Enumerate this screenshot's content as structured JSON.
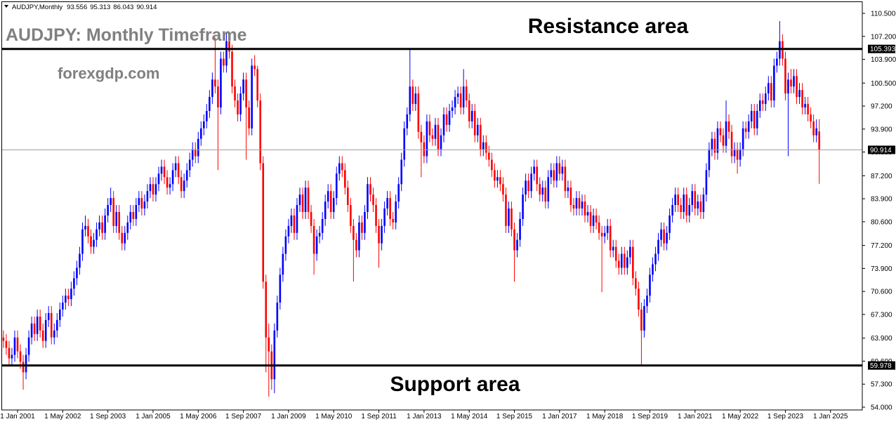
{
  "chart_data": {
    "type": "candlestick",
    "symbol": "AUDJPY,Monthly",
    "title": "AUDJPY: Monthly Timeframe",
    "watermark": "forexgdp.com",
    "resistance": {
      "label": "Resistance area",
      "value": 105.393
    },
    "support": {
      "label": "Support area",
      "value": 59.978
    },
    "up_color": "#0000ff",
    "down_color": "#ff0000",
    "ylim": [
      54.0,
      110.5
    ],
    "yticks": [
      {
        "value": 110.5,
        "label": "110.500"
      },
      {
        "value": 107.2,
        "label": "107.200"
      },
      {
        "value": 103.9,
        "label": "103.900"
      },
      {
        "value": 100.5,
        "label": "100.500"
      },
      {
        "value": 97.2,
        "label": "97.200"
      },
      {
        "value": 93.9,
        "label": "93.900"
      },
      {
        "value": 90.6,
        "label": "90.600"
      },
      {
        "value": 87.2,
        "label": "87.200"
      },
      {
        "value": 83.9,
        "label": "83.900"
      },
      {
        "value": 80.6,
        "label": "80.600"
      },
      {
        "value": 77.2,
        "label": "77.200"
      },
      {
        "value": 73.9,
        "label": "73.900"
      },
      {
        "value": 70.6,
        "label": "70.600"
      },
      {
        "value": 67.3,
        "label": "67.300"
      },
      {
        "value": 63.9,
        "label": "63.900"
      },
      {
        "value": 60.6,
        "label": "60.600"
      },
      {
        "value": 57.3,
        "label": "57.300"
      },
      {
        "value": 54.0,
        "label": "54.000"
      }
    ],
    "categories": [
      null,
      null,
      null,
      null,
      null,
      "1 Jan 2001",
      null,
      null,
      null,
      null,
      null,
      null,
      null,
      null,
      null,
      null,
      null,
      null,
      null,
      null,
      null,
      "1 May 2002",
      null,
      null,
      null,
      null,
      null,
      null,
      null,
      null,
      null,
      null,
      null,
      null,
      null,
      null,
      null,
      "1 Sep 2003",
      null,
      null,
      null,
      null,
      null,
      null,
      null,
      null,
      null,
      null,
      null,
      null,
      null,
      null,
      null,
      "1 Jan 2005",
      null,
      null,
      null,
      null,
      null,
      null,
      null,
      null,
      null,
      null,
      null,
      null,
      null,
      null,
      null,
      "1 May 2006",
      null,
      null,
      null,
      null,
      null,
      null,
      null,
      null,
      null,
      null,
      null,
      null,
      null,
      null,
      null,
      "1 Sep 2007",
      null,
      null,
      null,
      null,
      null,
      null,
      null,
      null,
      null,
      null,
      null,
      null,
      null,
      null,
      null,
      "1 Jan 2009",
      null,
      null,
      null,
      null,
      null,
      null,
      null,
      null,
      null,
      null,
      null,
      null,
      null,
      null,
      null,
      "1 May 2010",
      null,
      null,
      null,
      null,
      null,
      null,
      null,
      null,
      null,
      null,
      null,
      null,
      null,
      null,
      null,
      "1 Sep 2011",
      null,
      null,
      null,
      null,
      null,
      null,
      null,
      null,
      null,
      null,
      null,
      null,
      null,
      null,
      null,
      "1 Jan 2013",
      null,
      null,
      null,
      null,
      null,
      null,
      null,
      null,
      null,
      null,
      null,
      null,
      null,
      null,
      null,
      "1 May 2014",
      null,
      null,
      null,
      null,
      null,
      null,
      null,
      null,
      null,
      null,
      null,
      null,
      null,
      null,
      null,
      "1 Sep 2015",
      null,
      null,
      null,
      null,
      null,
      null,
      null,
      null,
      null,
      null,
      null,
      null,
      null,
      null,
      null,
      "1 Jan 2017",
      null,
      null,
      null,
      null,
      null,
      null,
      null,
      null,
      null,
      null,
      null,
      null,
      null,
      null,
      null,
      "1 May 2018",
      null,
      null,
      null,
      null,
      null,
      null,
      null,
      null,
      null,
      null,
      null,
      null,
      null,
      null,
      null,
      "1 Sep 2019",
      null,
      null,
      null,
      null,
      null,
      null,
      null,
      null,
      null,
      null,
      null,
      null,
      null,
      null,
      null,
      "1 Jan 2021",
      null,
      null,
      null,
      null,
      null,
      null,
      null,
      null,
      null,
      null,
      null,
      null,
      null,
      null,
      null,
      "1 May 2022",
      null,
      null,
      null,
      null,
      null,
      null,
      null,
      null,
      null,
      null,
      null,
      null,
      null,
      null,
      null,
      "1 Sep 2023",
      null,
      null,
      null,
      null,
      null,
      null,
      null,
      null,
      null,
      null,
      null,
      null,
      null,
      null,
      null,
      "1 Jan 2025"
    ],
    "open": [
      64,
      63.5,
      62.5,
      61,
      61.5,
      64,
      62,
      60.5,
      59,
      61.5,
      64,
      66,
      64.5,
      67,
      65,
      63.5,
      66.5,
      67.5,
      64,
      65,
      66.5,
      68,
      69,
      70,
      69.5,
      71,
      72.5,
      74,
      76,
      79.5,
      80,
      78.5,
      77,
      78,
      79.5,
      80.5,
      79,
      81.5,
      83,
      84,
      80,
      82,
      79,
      77.5,
      79,
      80.5,
      82,
      81,
      83,
      84,
      82.5,
      83.5,
      85,
      86,
      84.5,
      86,
      87.5,
      88.5,
      87,
      85.5,
      86,
      88,
      89,
      87,
      85,
      86.5,
      88,
      89.5,
      91,
      90,
      92.5,
      94,
      95,
      96.5,
      98.5,
      101,
      100,
      97,
      104,
      103,
      106.5,
      105,
      100,
      98,
      96,
      99,
      101,
      97,
      94,
      103,
      102.5,
      98,
      89,
      72,
      64,
      62,
      58,
      65,
      69,
      73,
      76,
      78.5,
      80,
      81.5,
      79,
      83,
      84.5,
      82,
      85.5,
      82,
      80,
      76,
      78.5,
      79,
      81,
      83.5,
      85,
      82,
      84,
      87.5,
      89,
      88,
      85.5,
      83,
      80,
      78,
      76.5,
      80.5,
      79,
      82,
      86,
      84.5,
      83,
      80,
      77.5,
      80,
      82.5,
      84,
      81,
      80.5,
      83.5,
      86,
      89.5,
      94,
      96,
      100,
      97.5,
      99,
      93.5,
      92,
      90,
      95,
      93,
      92.5,
      94.5,
      91,
      93,
      96,
      94.5,
      96.5,
      97,
      98.5,
      99,
      97,
      100,
      98,
      95,
      96.5,
      93,
      94.5,
      91,
      92,
      90.5,
      89.5,
      88,
      86.5,
      87,
      86,
      84.5,
      80,
      82.5,
      79.5,
      76.5,
      78,
      81,
      84.5,
      86.5,
      85,
      87.5,
      88.5,
      86,
      84.5,
      85.5,
      83.5,
      87,
      88,
      86.5,
      89,
      87.5,
      88.5,
      85,
      85.5,
      83,
      82.5,
      84,
      82.5,
      83.5,
      81.5,
      82,
      80,
      81.5,
      80.5,
      79,
      78.5,
      79,
      80,
      76.5,
      77,
      75,
      74,
      76,
      74,
      75.5,
      77,
      72.5,
      71,
      68,
      65,
      68.5,
      70,
      73,
      74.5,
      76,
      78,
      79.5,
      77.5,
      79,
      81.5,
      83,
      84.5,
      83,
      82,
      84.5,
      81.5,
      83,
      85,
      82.5,
      83.5,
      82,
      84.5,
      88,
      91,
      92.5,
      90.5,
      94,
      93,
      91.5,
      95,
      93.5,
      90,
      91,
      89.5,
      91,
      94,
      93.5,
      95,
      96.5,
      94,
      96.5,
      98,
      97.5,
      99,
      100.5,
      98,
      103,
      104,
      106.5,
      104,
      99,
      101,
      100,
      101.5,
      98.5,
      99.5,
      97,
      97.5,
      96,
      95,
      93,
      93.556,
      null,
      null,
      null,
      null
    ],
    "high": [
      65,
      64.5,
      63.5,
      62.5,
      65,
      65,
      63,
      61.5,
      62.5,
      65,
      67,
      67,
      68,
      68,
      66,
      67.5,
      68.5,
      68.5,
      66,
      67.5,
      69,
      70,
      71,
      71,
      72,
      73.5,
      75,
      77,
      80.5,
      81.5,
      81,
      79.5,
      79,
      80.5,
      81.5,
      81.5,
      82.5,
      84,
      85.5,
      85,
      83,
      83,
      80,
      80,
      81.5,
      83,
      83,
      84,
      85,
      85,
      84.5,
      86,
      87,
      87,
      87,
      88.5,
      89.5,
      89.5,
      88,
      87,
      89,
      90,
      90,
      88,
      87.5,
      89,
      90.5,
      92,
      92,
      93.5,
      95,
      96,
      97.5,
      99.5,
      102,
      107,
      101,
      105,
      105,
      107.8,
      107.5,
      106,
      101,
      99,
      100,
      102,
      102,
      98,
      104,
      104.5,
      103,
      99,
      90,
      73,
      66,
      63,
      66,
      70,
      74,
      77,
      79.5,
      81,
      82.5,
      82.5,
      84,
      85.5,
      85.5,
      86.5,
      86.5,
      83,
      81,
      79.5,
      80,
      82,
      84.5,
      86,
      86,
      85,
      88.5,
      90,
      90,
      89,
      86.5,
      84,
      81,
      79,
      81.5,
      81.5,
      83,
      87,
      87,
      85.5,
      84,
      81,
      81,
      83.5,
      85,
      85,
      82,
      84.5,
      87,
      90.5,
      95,
      97,
      105.4,
      101,
      100,
      100,
      94.5,
      93,
      96,
      96,
      94,
      95.5,
      95.5,
      94,
      97,
      97,
      97.5,
      98,
      99.5,
      100,
      100,
      102.5,
      101,
      99,
      97.5,
      97.5,
      95.5,
      95.5,
      93,
      93,
      91.5,
      90.5,
      89,
      88,
      88,
      87,
      85.5,
      83.5,
      83.5,
      80.5,
      79,
      82,
      85.5,
      87.5,
      87.5,
      88.5,
      89.5,
      89.5,
      87,
      86.5,
      86.5,
      88,
      89,
      89,
      90,
      90,
      89.5,
      89.5,
      86.5,
      86.5,
      84,
      85,
      85,
      84.5,
      84.5,
      83,
      83,
      82.5,
      82.5,
      81.5,
      80,
      80,
      81,
      81,
      78,
      78,
      76,
      77,
      77,
      76.5,
      78,
      78,
      73.5,
      72,
      69,
      69.5,
      71,
      74,
      75.5,
      77,
      79,
      80.5,
      80.5,
      80,
      82.5,
      84,
      85.5,
      85.5,
      84,
      85.5,
      85.5,
      84,
      86,
      86,
      84.5,
      84.5,
      85.5,
      89,
      92,
      93.5,
      93.5,
      95,
      95,
      94,
      98,
      96,
      94.5,
      92,
      92,
      92,
      95,
      95,
      96,
      97.5,
      97.5,
      97.5,
      99,
      99,
      100,
      101.5,
      101.5,
      104,
      105,
      109.4,
      107.5,
      105,
      102,
      102.5,
      102.5,
      102.5,
      100.5,
      100.5,
      98.5,
      98.5,
      97,
      96,
      95.3,
      95.313,
      null,
      null,
      null,
      null
    ],
    "low": [
      62.5,
      61.5,
      60,
      60,
      60.5,
      61,
      59.5,
      56.5,
      58,
      60.5,
      63,
      63.5,
      63.5,
      64,
      62.5,
      62.5,
      65.5,
      63,
      63,
      64,
      65.5,
      67,
      68,
      68.5,
      68.5,
      70,
      71.5,
      73,
      75,
      78.5,
      77.5,
      76,
      76,
      77,
      78.5,
      78,
      78,
      80.5,
      82,
      79,
      79,
      78,
      76.5,
      76.5,
      78,
      79.5,
      80,
      80,
      82,
      81.5,
      81.5,
      82.5,
      84,
      83.5,
      83.5,
      85,
      86.5,
      86,
      84.5,
      84.5,
      85,
      87,
      86,
      84,
      84,
      85.5,
      87,
      88.5,
      89,
      89,
      91.5,
      93,
      94,
      95.5,
      97.5,
      99,
      88,
      96,
      102,
      102,
      104,
      99,
      97,
      95,
      95,
      98,
      89.5,
      93,
      93,
      101.5,
      97,
      88,
      71,
      59,
      55.5,
      56.5,
      56,
      64,
      68,
      72,
      75,
      77.5,
      79,
      78,
      78,
      82,
      81,
      81,
      81,
      79,
      73,
      75,
      77.5,
      78,
      80,
      82.5,
      81,
      81,
      83,
      86.5,
      87,
      84.5,
      82,
      79,
      72,
      75.5,
      75.5,
      78,
      78,
      81,
      83.5,
      82,
      79,
      74,
      76.5,
      79,
      81.5,
      80,
      79.5,
      79.5,
      82.5,
      85,
      88.5,
      93,
      95,
      96.5,
      96.5,
      92.5,
      87,
      89,
      89,
      92,
      91.5,
      91.5,
      90,
      90,
      92,
      93.5,
      93.5,
      95.5,
      96,
      97.5,
      96,
      96,
      97,
      94,
      94,
      92,
      92,
      90,
      90,
      89.5,
      88.5,
      87,
      85.5,
      85.5,
      85,
      83.5,
      79,
      79,
      78.5,
      72,
      75.5,
      77,
      80,
      83.5,
      84,
      84,
      86.5,
      85,
      83.5,
      83.5,
      82.5,
      82.5,
      86,
      85.5,
      85.5,
      86.5,
      86.5,
      84,
      84,
      82,
      81.5,
      81.5,
      81.5,
      81.5,
      80.5,
      80.5,
      79,
      79,
      79.5,
      78,
      70.5,
      77.5,
      78,
      75.5,
      75.5,
      74,
      73,
      73,
      73,
      73,
      74.5,
      71.5,
      70,
      67,
      60,
      64,
      67.5,
      69,
      72,
      73.5,
      75,
      77,
      76.5,
      76.5,
      78,
      80.5,
      82,
      82,
      81,
      81,
      80.5,
      80.5,
      82,
      81.5,
      81.5,
      81,
      81,
      83.5,
      87,
      90,
      89.5,
      89.5,
      92,
      90.5,
      90.5,
      92.5,
      89,
      89,
      87.5,
      88.5,
      90,
      92.5,
      92.5,
      94,
      93,
      93,
      95.5,
      96.5,
      96.5,
      98,
      97,
      97,
      102,
      103,
      103,
      98,
      90,
      99,
      99,
      97.5,
      97.5,
      96,
      96,
      95,
      94,
      92,
      92,
      86.043,
      null,
      null,
      null,
      null
    ],
    "close": [
      63.5,
      62.5,
      61,
      61.5,
      64,
      62,
      60.5,
      59,
      61.5,
      64,
      66,
      64.5,
      67,
      65,
      63.5,
      66.5,
      67.5,
      64,
      65,
      66.5,
      68,
      69,
      70,
      69.5,
      71,
      72.5,
      74,
      76,
      79.5,
      80,
      78.5,
      77,
      78,
      79.5,
      80.5,
      79,
      81.5,
      83,
      84,
      80,
      82,
      79,
      77.5,
      79,
      80.5,
      82,
      81,
      83,
      84,
      82.5,
      83.5,
      85,
      86,
      84.5,
      86,
      87.5,
      88.5,
      87,
      85.5,
      86,
      88,
      89,
      87,
      85,
      86.5,
      88,
      89.5,
      91,
      90,
      92.5,
      94,
      95,
      96.5,
      98.5,
      101,
      100,
      97,
      104,
      103,
      106.5,
      105,
      100,
      98,
      96,
      99,
      101,
      97,
      94,
      103,
      102.5,
      98,
      89,
      72,
      64,
      62,
      58,
      65,
      69,
      73,
      76,
      78.5,
      80,
      81.5,
      79,
      83,
      84.5,
      82,
      85.5,
      82,
      80,
      76,
      78.5,
      79,
      81,
      83.5,
      85,
      82,
      84,
      87.5,
      89,
      88,
      85.5,
      83,
      80,
      78,
      76.5,
      80.5,
      79,
      82,
      86,
      84.5,
      83,
      80,
      77.5,
      80,
      82.5,
      84,
      81,
      80.5,
      83.5,
      86,
      89.5,
      94,
      96,
      100,
      97.5,
      99,
      93.5,
      92,
      90,
      95,
      93,
      92.5,
      94.5,
      91,
      93,
      96,
      94.5,
      96.5,
      97,
      98.5,
      99,
      97,
      100,
      98,
      95,
      96.5,
      93,
      94.5,
      91,
      92,
      90.5,
      89.5,
      88,
      86.5,
      87,
      86,
      84.5,
      80,
      82.5,
      79.5,
      76.5,
      78,
      81,
      84.5,
      86.5,
      85,
      87.5,
      88.5,
      86,
      84.5,
      85.5,
      83.5,
      87,
      88,
      86.5,
      89,
      87.5,
      88.5,
      85,
      85.5,
      83,
      82.5,
      84,
      82.5,
      83.5,
      81.5,
      82,
      80,
      81.5,
      80.5,
      79,
      78.5,
      79,
      80,
      76.5,
      77,
      75,
      74,
      76,
      74,
      75.5,
      77,
      72.5,
      71,
      68,
      65,
      68.5,
      70,
      73,
      74.5,
      76,
      78,
      79.5,
      77.5,
      79,
      81.5,
      83,
      84.5,
      83,
      82,
      84.5,
      81.5,
      83,
      85,
      82.5,
      83.5,
      82,
      84.5,
      88,
      91,
      92.5,
      90.5,
      94,
      93,
      91.5,
      95,
      93.5,
      90,
      91,
      89.5,
      91,
      94,
      93.5,
      95,
      96.5,
      94,
      96.5,
      98,
      97.5,
      99,
      100.5,
      98,
      103,
      104,
      106.5,
      104,
      99,
      101,
      100,
      101.5,
      98.5,
      99.5,
      97,
      97.5,
      96,
      95,
      93,
      94,
      90.914,
      null,
      null,
      null,
      null
    ]
  }
}
